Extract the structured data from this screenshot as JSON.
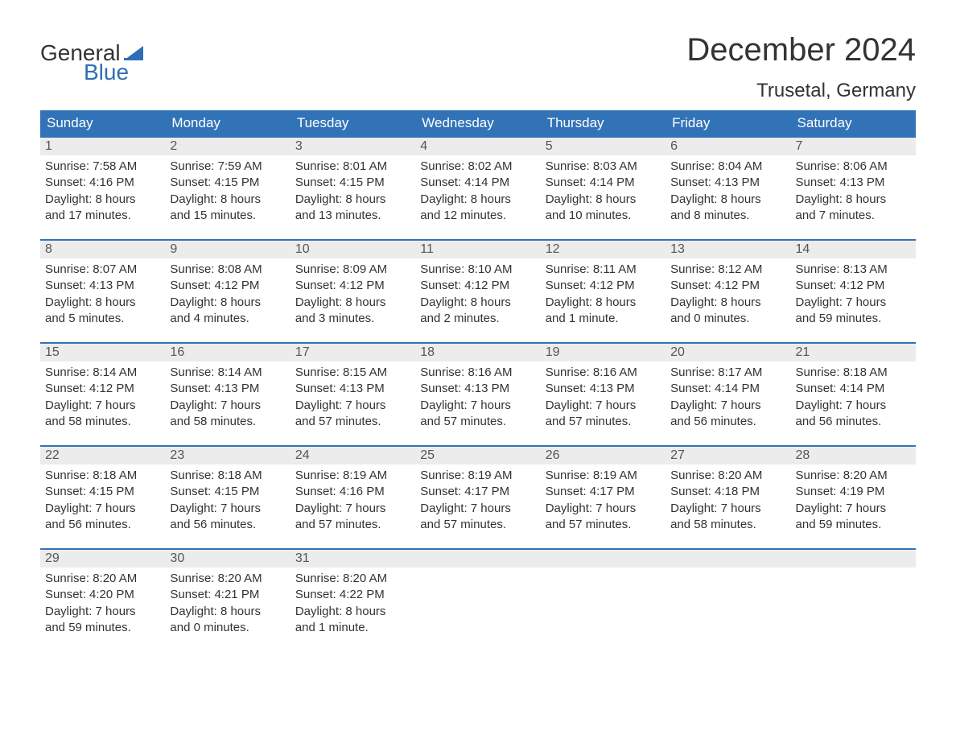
{
  "logo": {
    "text_general": "General",
    "text_blue": "Blue",
    "flag_color": "#2f6eb5"
  },
  "header": {
    "month_title": "December 2024",
    "location": "Trusetal, Germany"
  },
  "colors": {
    "header_bg": "#3273b8",
    "header_text": "#ffffff",
    "daynum_bg": "#ececec",
    "border": "#3273b8",
    "body_text": "#333333"
  },
  "weekdays": [
    "Sunday",
    "Monday",
    "Tuesday",
    "Wednesday",
    "Thursday",
    "Friday",
    "Saturday"
  ],
  "weeks": [
    [
      {
        "n": "1",
        "sunrise": "Sunrise: 7:58 AM",
        "sunset": "Sunset: 4:16 PM",
        "d1": "Daylight: 8 hours",
        "d2": "and 17 minutes."
      },
      {
        "n": "2",
        "sunrise": "Sunrise: 7:59 AM",
        "sunset": "Sunset: 4:15 PM",
        "d1": "Daylight: 8 hours",
        "d2": "and 15 minutes."
      },
      {
        "n": "3",
        "sunrise": "Sunrise: 8:01 AM",
        "sunset": "Sunset: 4:15 PM",
        "d1": "Daylight: 8 hours",
        "d2": "and 13 minutes."
      },
      {
        "n": "4",
        "sunrise": "Sunrise: 8:02 AM",
        "sunset": "Sunset: 4:14 PM",
        "d1": "Daylight: 8 hours",
        "d2": "and 12 minutes."
      },
      {
        "n": "5",
        "sunrise": "Sunrise: 8:03 AM",
        "sunset": "Sunset: 4:14 PM",
        "d1": "Daylight: 8 hours",
        "d2": "and 10 minutes."
      },
      {
        "n": "6",
        "sunrise": "Sunrise: 8:04 AM",
        "sunset": "Sunset: 4:13 PM",
        "d1": "Daylight: 8 hours",
        "d2": "and 8 minutes."
      },
      {
        "n": "7",
        "sunrise": "Sunrise: 8:06 AM",
        "sunset": "Sunset: 4:13 PM",
        "d1": "Daylight: 8 hours",
        "d2": "and 7 minutes."
      }
    ],
    [
      {
        "n": "8",
        "sunrise": "Sunrise: 8:07 AM",
        "sunset": "Sunset: 4:13 PM",
        "d1": "Daylight: 8 hours",
        "d2": "and 5 minutes."
      },
      {
        "n": "9",
        "sunrise": "Sunrise: 8:08 AM",
        "sunset": "Sunset: 4:12 PM",
        "d1": "Daylight: 8 hours",
        "d2": "and 4 minutes."
      },
      {
        "n": "10",
        "sunrise": "Sunrise: 8:09 AM",
        "sunset": "Sunset: 4:12 PM",
        "d1": "Daylight: 8 hours",
        "d2": "and 3 minutes."
      },
      {
        "n": "11",
        "sunrise": "Sunrise: 8:10 AM",
        "sunset": "Sunset: 4:12 PM",
        "d1": "Daylight: 8 hours",
        "d2": "and 2 minutes."
      },
      {
        "n": "12",
        "sunrise": "Sunrise: 8:11 AM",
        "sunset": "Sunset: 4:12 PM",
        "d1": "Daylight: 8 hours",
        "d2": "and 1 minute."
      },
      {
        "n": "13",
        "sunrise": "Sunrise: 8:12 AM",
        "sunset": "Sunset: 4:12 PM",
        "d1": "Daylight: 8 hours",
        "d2": "and 0 minutes."
      },
      {
        "n": "14",
        "sunrise": "Sunrise: 8:13 AM",
        "sunset": "Sunset: 4:12 PM",
        "d1": "Daylight: 7 hours",
        "d2": "and 59 minutes."
      }
    ],
    [
      {
        "n": "15",
        "sunrise": "Sunrise: 8:14 AM",
        "sunset": "Sunset: 4:12 PM",
        "d1": "Daylight: 7 hours",
        "d2": "and 58 minutes."
      },
      {
        "n": "16",
        "sunrise": "Sunrise: 8:14 AM",
        "sunset": "Sunset: 4:13 PM",
        "d1": "Daylight: 7 hours",
        "d2": "and 58 minutes."
      },
      {
        "n": "17",
        "sunrise": "Sunrise: 8:15 AM",
        "sunset": "Sunset: 4:13 PM",
        "d1": "Daylight: 7 hours",
        "d2": "and 57 minutes."
      },
      {
        "n": "18",
        "sunrise": "Sunrise: 8:16 AM",
        "sunset": "Sunset: 4:13 PM",
        "d1": "Daylight: 7 hours",
        "d2": "and 57 minutes."
      },
      {
        "n": "19",
        "sunrise": "Sunrise: 8:16 AM",
        "sunset": "Sunset: 4:13 PM",
        "d1": "Daylight: 7 hours",
        "d2": "and 57 minutes."
      },
      {
        "n": "20",
        "sunrise": "Sunrise: 8:17 AM",
        "sunset": "Sunset: 4:14 PM",
        "d1": "Daylight: 7 hours",
        "d2": "and 56 minutes."
      },
      {
        "n": "21",
        "sunrise": "Sunrise: 8:18 AM",
        "sunset": "Sunset: 4:14 PM",
        "d1": "Daylight: 7 hours",
        "d2": "and 56 minutes."
      }
    ],
    [
      {
        "n": "22",
        "sunrise": "Sunrise: 8:18 AM",
        "sunset": "Sunset: 4:15 PM",
        "d1": "Daylight: 7 hours",
        "d2": "and 56 minutes."
      },
      {
        "n": "23",
        "sunrise": "Sunrise: 8:18 AM",
        "sunset": "Sunset: 4:15 PM",
        "d1": "Daylight: 7 hours",
        "d2": "and 56 minutes."
      },
      {
        "n": "24",
        "sunrise": "Sunrise: 8:19 AM",
        "sunset": "Sunset: 4:16 PM",
        "d1": "Daylight: 7 hours",
        "d2": "and 57 minutes."
      },
      {
        "n": "25",
        "sunrise": "Sunrise: 8:19 AM",
        "sunset": "Sunset: 4:17 PM",
        "d1": "Daylight: 7 hours",
        "d2": "and 57 minutes."
      },
      {
        "n": "26",
        "sunrise": "Sunrise: 8:19 AM",
        "sunset": "Sunset: 4:17 PM",
        "d1": "Daylight: 7 hours",
        "d2": "and 57 minutes."
      },
      {
        "n": "27",
        "sunrise": "Sunrise: 8:20 AM",
        "sunset": "Sunset: 4:18 PM",
        "d1": "Daylight: 7 hours",
        "d2": "and 58 minutes."
      },
      {
        "n": "28",
        "sunrise": "Sunrise: 8:20 AM",
        "sunset": "Sunset: 4:19 PM",
        "d1": "Daylight: 7 hours",
        "d2": "and 59 minutes."
      }
    ],
    [
      {
        "n": "29",
        "sunrise": "Sunrise: 8:20 AM",
        "sunset": "Sunset: 4:20 PM",
        "d1": "Daylight: 7 hours",
        "d2": "and 59 minutes."
      },
      {
        "n": "30",
        "sunrise": "Sunrise: 8:20 AM",
        "sunset": "Sunset: 4:21 PM",
        "d1": "Daylight: 8 hours",
        "d2": "and 0 minutes."
      },
      {
        "n": "31",
        "sunrise": "Sunrise: 8:20 AM",
        "sunset": "Sunset: 4:22 PM",
        "d1": "Daylight: 8 hours",
        "d2": "and 1 minute."
      },
      {
        "empty": true
      },
      {
        "empty": true
      },
      {
        "empty": true
      },
      {
        "empty": true
      }
    ]
  ]
}
